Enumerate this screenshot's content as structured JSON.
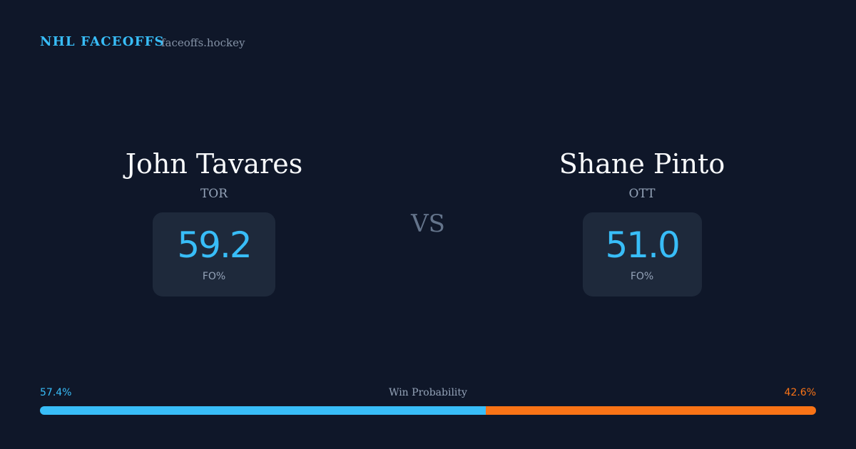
{
  "header": {
    "title": "NHL FACEOFFS",
    "site": "faceoffs.hockey"
  },
  "players": [
    {
      "name": "John Tavares",
      "team": "TOR",
      "stat_value": "59.2",
      "stat_label": "FO%"
    },
    {
      "name": "Shane Pinto",
      "team": "OTT",
      "stat_value": "51.0",
      "stat_label": "FO%"
    }
  ],
  "versus": "VS",
  "win_probability": {
    "label": "Win Probability",
    "left": {
      "value": 57.4,
      "label": "57.4%",
      "color": "#38bdf8"
    },
    "right": {
      "value": 42.6,
      "label": "42.6%",
      "color": "#f97316"
    }
  }
}
